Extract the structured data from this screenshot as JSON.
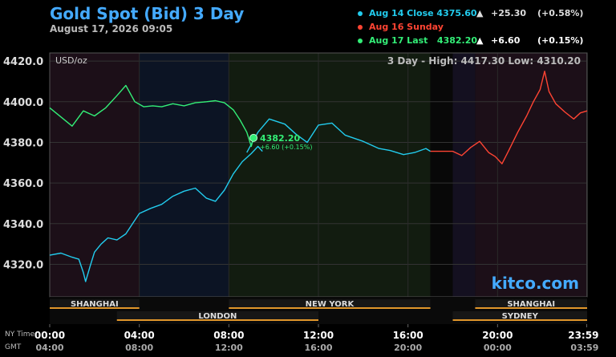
{
  "header": {
    "title": "Gold Spot (Bid) 3 Day",
    "date": "August 17, 2026 09:05"
  },
  "legend": [
    {
      "label": "Aug 14 Close 4375.60",
      "arrow": "▲",
      "change": "+25.30",
      "percent": "(+0.58%)",
      "color": "#22ccee"
    },
    {
      "label": "Aug 16 Sunday",
      "arrow": "",
      "change": "",
      "percent": "",
      "color": "#ff4433"
    },
    {
      "label": "Aug 17 Last   4382.20",
      "arrow": "▲",
      "change": "+6.60",
      "percent": "(+0.15%)",
      "color": "#33ee77"
    }
  ],
  "chart_data": {
    "type": "line",
    "unit_label": "USD/oz",
    "range_text": "3 Day - High: 4417.30  Low: 4310.20",
    "y_ticks": [
      "4420.0",
      "4400.0",
      "4380.0",
      "4360.0",
      "4340.0",
      "4320.0"
    ],
    "ylim": [
      4304,
      4424
    ],
    "xlim": [
      0,
      24
    ],
    "x_ticks_ny": [
      "00:00",
      "04:00",
      "08:00",
      "12:00",
      "16:00",
      "20:00",
      "23:59"
    ],
    "x_ticks_gmt": [
      "04:00",
      "08:00",
      "12:00",
      "16:00",
      "20:00",
      "00:00",
      "03:59"
    ],
    "x_tick_hours": [
      0,
      4,
      8,
      12,
      16,
      20,
      23.98
    ],
    "row_labels": [
      "NY Time",
      "GMT"
    ],
    "sessions_top": [
      {
        "label": "SHANGHAI",
        "start": 0,
        "end": 4
      },
      {
        "label": "NEW YORK",
        "start": 8,
        "end": 17
      },
      {
        "label": "SHANGHAI",
        "start": 19,
        "end": 24
      }
    ],
    "sessions_bottom": [
      {
        "label": "LONDON",
        "start": 3,
        "end": 12
      },
      {
        "label": "SYDNEY",
        "start": 18,
        "end": 24
      }
    ],
    "series": [
      {
        "name": "Aug 14",
        "color": "#22ccee",
        "points": [
          [
            0.0,
            4324.5
          ],
          [
            0.5,
            4325.5
          ],
          [
            1.0,
            4323.5
          ],
          [
            1.3,
            4322.5
          ],
          [
            1.5,
            4316.0
          ],
          [
            1.6,
            4311.5
          ],
          [
            1.8,
            4319.0
          ],
          [
            2.0,
            4326.0
          ],
          [
            2.3,
            4330.0
          ],
          [
            2.6,
            4333.0
          ],
          [
            3.0,
            4332.0
          ],
          [
            3.4,
            4335.0
          ],
          [
            3.7,
            4340.0
          ],
          [
            4.0,
            4345.0
          ],
          [
            4.5,
            4347.5
          ],
          [
            5.0,
            4349.5
          ],
          [
            5.5,
            4353.5
          ],
          [
            6.0,
            4356.0
          ],
          [
            6.5,
            4357.5
          ],
          [
            7.0,
            4352.5
          ],
          [
            7.4,
            4351.0
          ],
          [
            7.8,
            4356.5
          ],
          [
            8.2,
            4364.5
          ],
          [
            8.6,
            4370.5
          ],
          [
            9.0,
            4374.5
          ],
          [
            9.3,
            4378.0
          ],
          [
            9.5,
            4375.6
          ]
        ]
      },
      {
        "name": "Aug 14 Session B",
        "color": "#22ccee",
        "points": [
          [
            8.8,
            4375.0
          ],
          [
            9.3,
            4385.0
          ],
          [
            9.8,
            4391.5
          ],
          [
            10.5,
            4389.0
          ],
          [
            11.0,
            4384.0
          ],
          [
            11.5,
            4380.0
          ],
          [
            12.0,
            4388.5
          ],
          [
            12.6,
            4389.5
          ],
          [
            13.2,
            4383.5
          ],
          [
            14.0,
            4380.5
          ],
          [
            14.7,
            4377.0
          ],
          [
            15.2,
            4376.0
          ],
          [
            15.8,
            4374.0
          ],
          [
            16.3,
            4375.0
          ],
          [
            16.8,
            4377.0
          ],
          [
            17.0,
            4375.6
          ]
        ]
      },
      {
        "name": "Aug 16",
        "color": "#ff4433",
        "points": [
          [
            17.0,
            4375.6
          ],
          [
            18.0,
            4375.6
          ],
          [
            18.4,
            4373.5
          ],
          [
            18.8,
            4377.5
          ],
          [
            19.2,
            4380.5
          ],
          [
            19.6,
            4375.0
          ],
          [
            19.9,
            4373.0
          ],
          [
            20.2,
            4369.5
          ],
          [
            20.5,
            4376.0
          ],
          [
            20.9,
            4385.0
          ],
          [
            21.3,
            4393.0
          ],
          [
            21.6,
            4400.0
          ],
          [
            21.9,
            4406.0
          ],
          [
            22.1,
            4415.0
          ],
          [
            22.3,
            4405.0
          ],
          [
            22.6,
            4399.0
          ],
          [
            23.0,
            4395.0
          ],
          [
            23.4,
            4391.5
          ],
          [
            23.7,
            4394.5
          ],
          [
            24.0,
            4395.5
          ]
        ]
      },
      {
        "name": "Aug 17",
        "color": "#33ee77",
        "points": [
          [
            0.0,
            4397.0
          ],
          [
            0.5,
            4392.5
          ],
          [
            1.0,
            4388.0
          ],
          [
            1.5,
            4395.5
          ],
          [
            2.0,
            4393.0
          ],
          [
            2.5,
            4397.0
          ],
          [
            3.0,
            4403.0
          ],
          [
            3.4,
            4408.0
          ],
          [
            3.8,
            4400.0
          ],
          [
            4.2,
            4397.5
          ],
          [
            4.6,
            4398.0
          ],
          [
            5.0,
            4397.5
          ],
          [
            5.5,
            4399.0
          ],
          [
            6.0,
            4398.0
          ],
          [
            6.5,
            4399.5
          ],
          [
            7.0,
            4400.0
          ],
          [
            7.4,
            4400.5
          ],
          [
            7.8,
            4399.5
          ],
          [
            8.2,
            4396.0
          ],
          [
            8.5,
            4391.0
          ],
          [
            8.8,
            4385.0
          ],
          [
            9.0,
            4378.0
          ],
          [
            9.1,
            4382.2
          ]
        ]
      }
    ],
    "last_marker": {
      "x": 9.1,
      "y": 4382.2,
      "label": "4382.20",
      "change": "+6.60 (+0.15%)",
      "color": "#33ee77"
    },
    "watermark": "kitco.com"
  }
}
